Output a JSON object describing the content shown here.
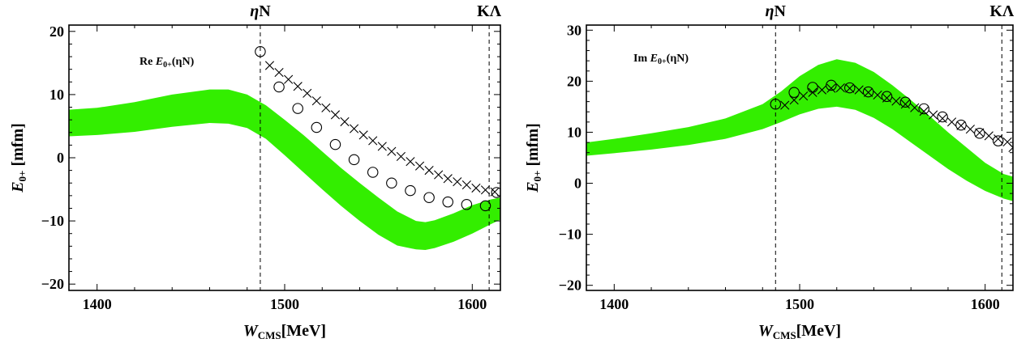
{
  "chart_data": [
    {
      "type": "area",
      "panel_label": {
        "prefix": "Re",
        "sym": "E",
        "sub": "0+",
        "arg": "(ηN)"
      },
      "ylabel": {
        "sym": "E",
        "sub": "0+",
        "unit": " [mfm]"
      },
      "xlabel": {
        "sym": "W",
        "sub": "CMS",
        "unit": "[MeV]"
      },
      "xlim": [
        1385,
        1615
      ],
      "ylim": [
        -21,
        21
      ],
      "xticks": [
        1400,
        1500,
        1600
      ],
      "yticks": [
        -20,
        -10,
        0,
        10,
        20
      ],
      "thresholds": [
        {
          "label": "ηN",
          "x": 1487
        },
        {
          "label": "KΛ",
          "x": 1609
        }
      ],
      "band_color": "#33ee00",
      "band": {
        "x": [
          1385,
          1400,
          1420,
          1440,
          1460,
          1470,
          1480,
          1490,
          1500,
          1510,
          1520,
          1530,
          1540,
          1550,
          1560,
          1570,
          1575,
          1580,
          1590,
          1600,
          1610,
          1615
        ],
        "upper": [
          7.6,
          7.9,
          8.8,
          10.0,
          10.8,
          10.8,
          10.0,
          8.3,
          6.0,
          3.6,
          1.0,
          -1.6,
          -4.0,
          -6.3,
          -8.5,
          -10.0,
          -10.2,
          -9.9,
          -8.8,
          -7.5,
          -6.6,
          -6.3
        ],
        "lower": [
          3.4,
          3.6,
          4.1,
          4.9,
          5.5,
          5.4,
          4.7,
          3.0,
          0.4,
          -2.3,
          -5.0,
          -7.6,
          -10.0,
          -12.2,
          -13.9,
          -14.5,
          -14.6,
          -14.3,
          -13.3,
          -12.0,
          -10.5,
          -9.8
        ]
      },
      "series": [
        {
          "marker": "circle",
          "x": [
            1487,
            1497,
            1507,
            1517,
            1527,
            1537,
            1547,
            1557,
            1567,
            1577,
            1587,
            1597,
            1607,
            1613
          ],
          "y": [
            16.8,
            11.2,
            7.8,
            4.8,
            2.1,
            -0.3,
            -2.3,
            -4.0,
            -5.2,
            -6.3,
            -7.0,
            -7.4,
            -7.6,
            -5.5
          ]
        },
        {
          "marker": "cross",
          "x": [
            1492,
            1497,
            1502,
            1507,
            1512,
            1517,
            1522,
            1527,
            1532,
            1537,
            1542,
            1547,
            1552,
            1557,
            1562,
            1567,
            1572,
            1577,
            1582,
            1587,
            1592,
            1597,
            1602,
            1607,
            1612
          ],
          "y": [
            14.6,
            13.5,
            12.4,
            11.3,
            10.2,
            9.0,
            7.9,
            6.8,
            5.7,
            4.6,
            3.6,
            2.7,
            1.8,
            1.0,
            0.2,
            -0.6,
            -1.3,
            -2.0,
            -2.7,
            -3.3,
            -3.8,
            -4.3,
            -4.8,
            -5.1,
            -5.4
          ]
        }
      ]
    },
    {
      "type": "area",
      "panel_label": {
        "prefix": "Im",
        "sym": "E",
        "sub": "0+",
        "arg": "(ηN)"
      },
      "ylabel": {
        "sym": "E",
        "sub": "0+",
        "unit": " [mfm]"
      },
      "xlabel": {
        "sym": "W",
        "sub": "CMS",
        "unit": "[MeV]"
      },
      "xlim": [
        1385,
        1615
      ],
      "ylim": [
        -21,
        31
      ],
      "xticks": [
        1400,
        1500,
        1600
      ],
      "yticks": [
        -20,
        -10,
        0,
        10,
        20,
        30
      ],
      "thresholds": [
        {
          "label": "ηN",
          "x": 1487
        },
        {
          "label": "KΛ",
          "x": 1609
        }
      ],
      "band_color": "#33ee00",
      "band": {
        "x": [
          1385,
          1400,
          1420,
          1440,
          1460,
          1480,
          1490,
          1500,
          1510,
          1520,
          1530,
          1540,
          1550,
          1560,
          1570,
          1580,
          1590,
          1600,
          1610,
          1615
        ],
        "upper": [
          8.0,
          8.7,
          9.8,
          11.0,
          12.7,
          15.5,
          18.0,
          21.0,
          23.2,
          24.3,
          23.6,
          21.8,
          19.2,
          16.3,
          13.2,
          10.0,
          7.0,
          4.0,
          1.8,
          1.3
        ],
        "lower": [
          5.4,
          5.9,
          6.6,
          7.5,
          8.7,
          10.6,
          12.0,
          13.5,
          14.6,
          15.0,
          14.4,
          12.8,
          10.6,
          8.0,
          5.4,
          2.8,
          0.5,
          -1.5,
          -3.0,
          -3.5
        ]
      },
      "series": [
        {
          "marker": "circle",
          "x": [
            1487,
            1497,
            1507,
            1517,
            1527,
            1537,
            1547,
            1557,
            1567,
            1577,
            1587,
            1597,
            1607
          ],
          "y": [
            15.5,
            17.8,
            18.8,
            19.2,
            18.7,
            17.9,
            17.0,
            15.9,
            14.6,
            13.0,
            11.4,
            9.8,
            8.3
          ]
        },
        {
          "marker": "cross",
          "x": [
            1492,
            1497,
            1502,
            1507,
            1512,
            1517,
            1522,
            1527,
            1532,
            1537,
            1542,
            1547,
            1552,
            1557,
            1562,
            1567,
            1572,
            1577,
            1582,
            1587,
            1592,
            1597,
            1602,
            1607,
            1612,
            1615
          ],
          "y": [
            15.3,
            16.3,
            17.1,
            17.8,
            18.3,
            18.6,
            18.7,
            18.6,
            18.3,
            17.8,
            17.3,
            16.7,
            16.1,
            15.5,
            14.8,
            14.1,
            13.4,
            12.7,
            12.0,
            11.3,
            10.6,
            9.9,
            9.3,
            8.7,
            8.1,
            7.0
          ]
        }
      ]
    }
  ]
}
